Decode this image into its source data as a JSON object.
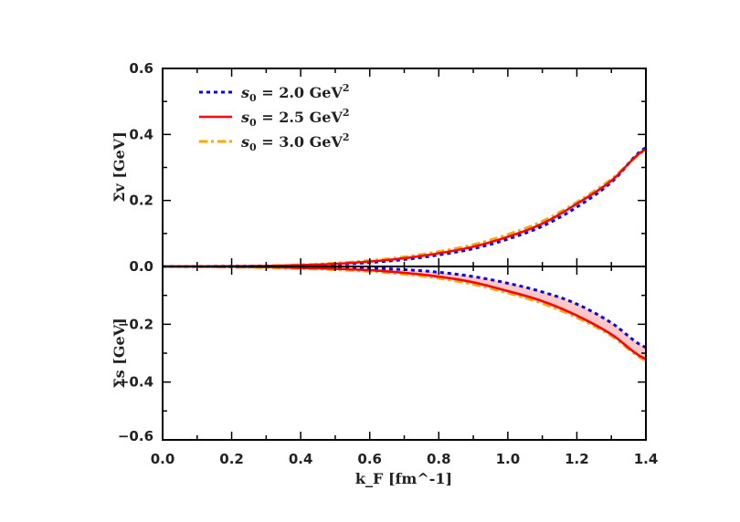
{
  "chart_data": {
    "type": "line",
    "x": [
      0,
      0.1,
      0.2,
      0.3,
      0.4,
      0.5,
      0.6,
      0.7,
      0.8,
      0.9,
      1.0,
      1.1,
      1.2,
      1.3,
      1.4
    ],
    "xlabel": "k_F [fm^-1]",
    "xlim": [
      0,
      1.4
    ],
    "xticks": [
      "0.0",
      "0.2",
      "0.4",
      "0.6",
      "0.8",
      "1.0",
      "1.2",
      "1.4"
    ],
    "legend_placement": "top-left",
    "colors": {
      "s0_2.0": "#0000ff",
      "s0_2.5": "#ff0000",
      "s0_3.0": "#ffa500",
      "band": "#ffc8c8"
    },
    "panels": [
      {
        "ylabel": "Σv [GeV]",
        "ylim": [
          0,
          0.6
        ],
        "yticks": [
          "0.0",
          "0.2",
          "0.4",
          "0.6"
        ],
        "series": [
          {
            "name": "s0 = 2.0 GeV2",
            "style": "dotted",
            "values": [
              0,
              0,
              0.0004,
              0.001,
              0.003,
              0.006,
              0.012,
              0.021,
              0.035,
              0.054,
              0.083,
              0.122,
              0.18,
              0.255,
              0.36
            ]
          },
          {
            "name": "s0 = 2.5 GeV2",
            "style": "solid",
            "values": [
              0,
              0,
              0.0005,
              0.0015,
              0.004,
              0.008,
              0.015,
              0.025,
              0.04,
              0.06,
              0.09,
              0.13,
              0.19,
              0.26,
              0.355
            ]
          },
          {
            "name": "s0 = 3.0 GeV2",
            "style": "dashdot",
            "values": [
              0,
              0,
              0.0006,
              0.002,
              0.005,
              0.01,
              0.018,
              0.029,
              0.045,
              0.066,
              0.097,
              0.137,
              0.195,
              0.265,
              0.352
            ]
          }
        ]
      },
      {
        "ylabel": "Σs [GeV]",
        "ylim": [
          -0.6,
          0
        ],
        "yticks": [
          "−0.6",
          "−0.4",
          "−0.2"
        ],
        "series": [
          {
            "name": "s0 = 2.0 GeV2",
            "style": "dotted",
            "values": [
              0,
              0,
              -0.0005,
              -0.001,
              -0.002,
              -0.004,
              -0.006,
              -0.011,
              -0.02,
              -0.035,
              -0.058,
              -0.088,
              -0.13,
              -0.195,
              -0.28
            ]
          },
          {
            "name": "s0 = 2.5 GeV2",
            "style": "solid",
            "values": [
              0,
              0,
              -0.001,
              -0.002,
              -0.005,
              -0.008,
              -0.013,
              -0.022,
              -0.035,
              -0.055,
              -0.085,
              -0.12,
              -0.17,
              -0.235,
              -0.32
            ]
          },
          {
            "name": "s0 = 3.0 GeV2",
            "style": "dashdot",
            "values": [
              0,
              -0.001,
              -0.002,
              -0.004,
              -0.007,
              -0.011,
              -0.017,
              -0.027,
              -0.041,
              -0.062,
              -0.092,
              -0.128,
              -0.177,
              -0.24,
              -0.325
            ]
          }
        ]
      }
    ],
    "legend": [
      "s0 = 2.0 GeV2",
      "s0 = 2.5 GeV2",
      "s0 = 3.0 GeV2"
    ]
  }
}
